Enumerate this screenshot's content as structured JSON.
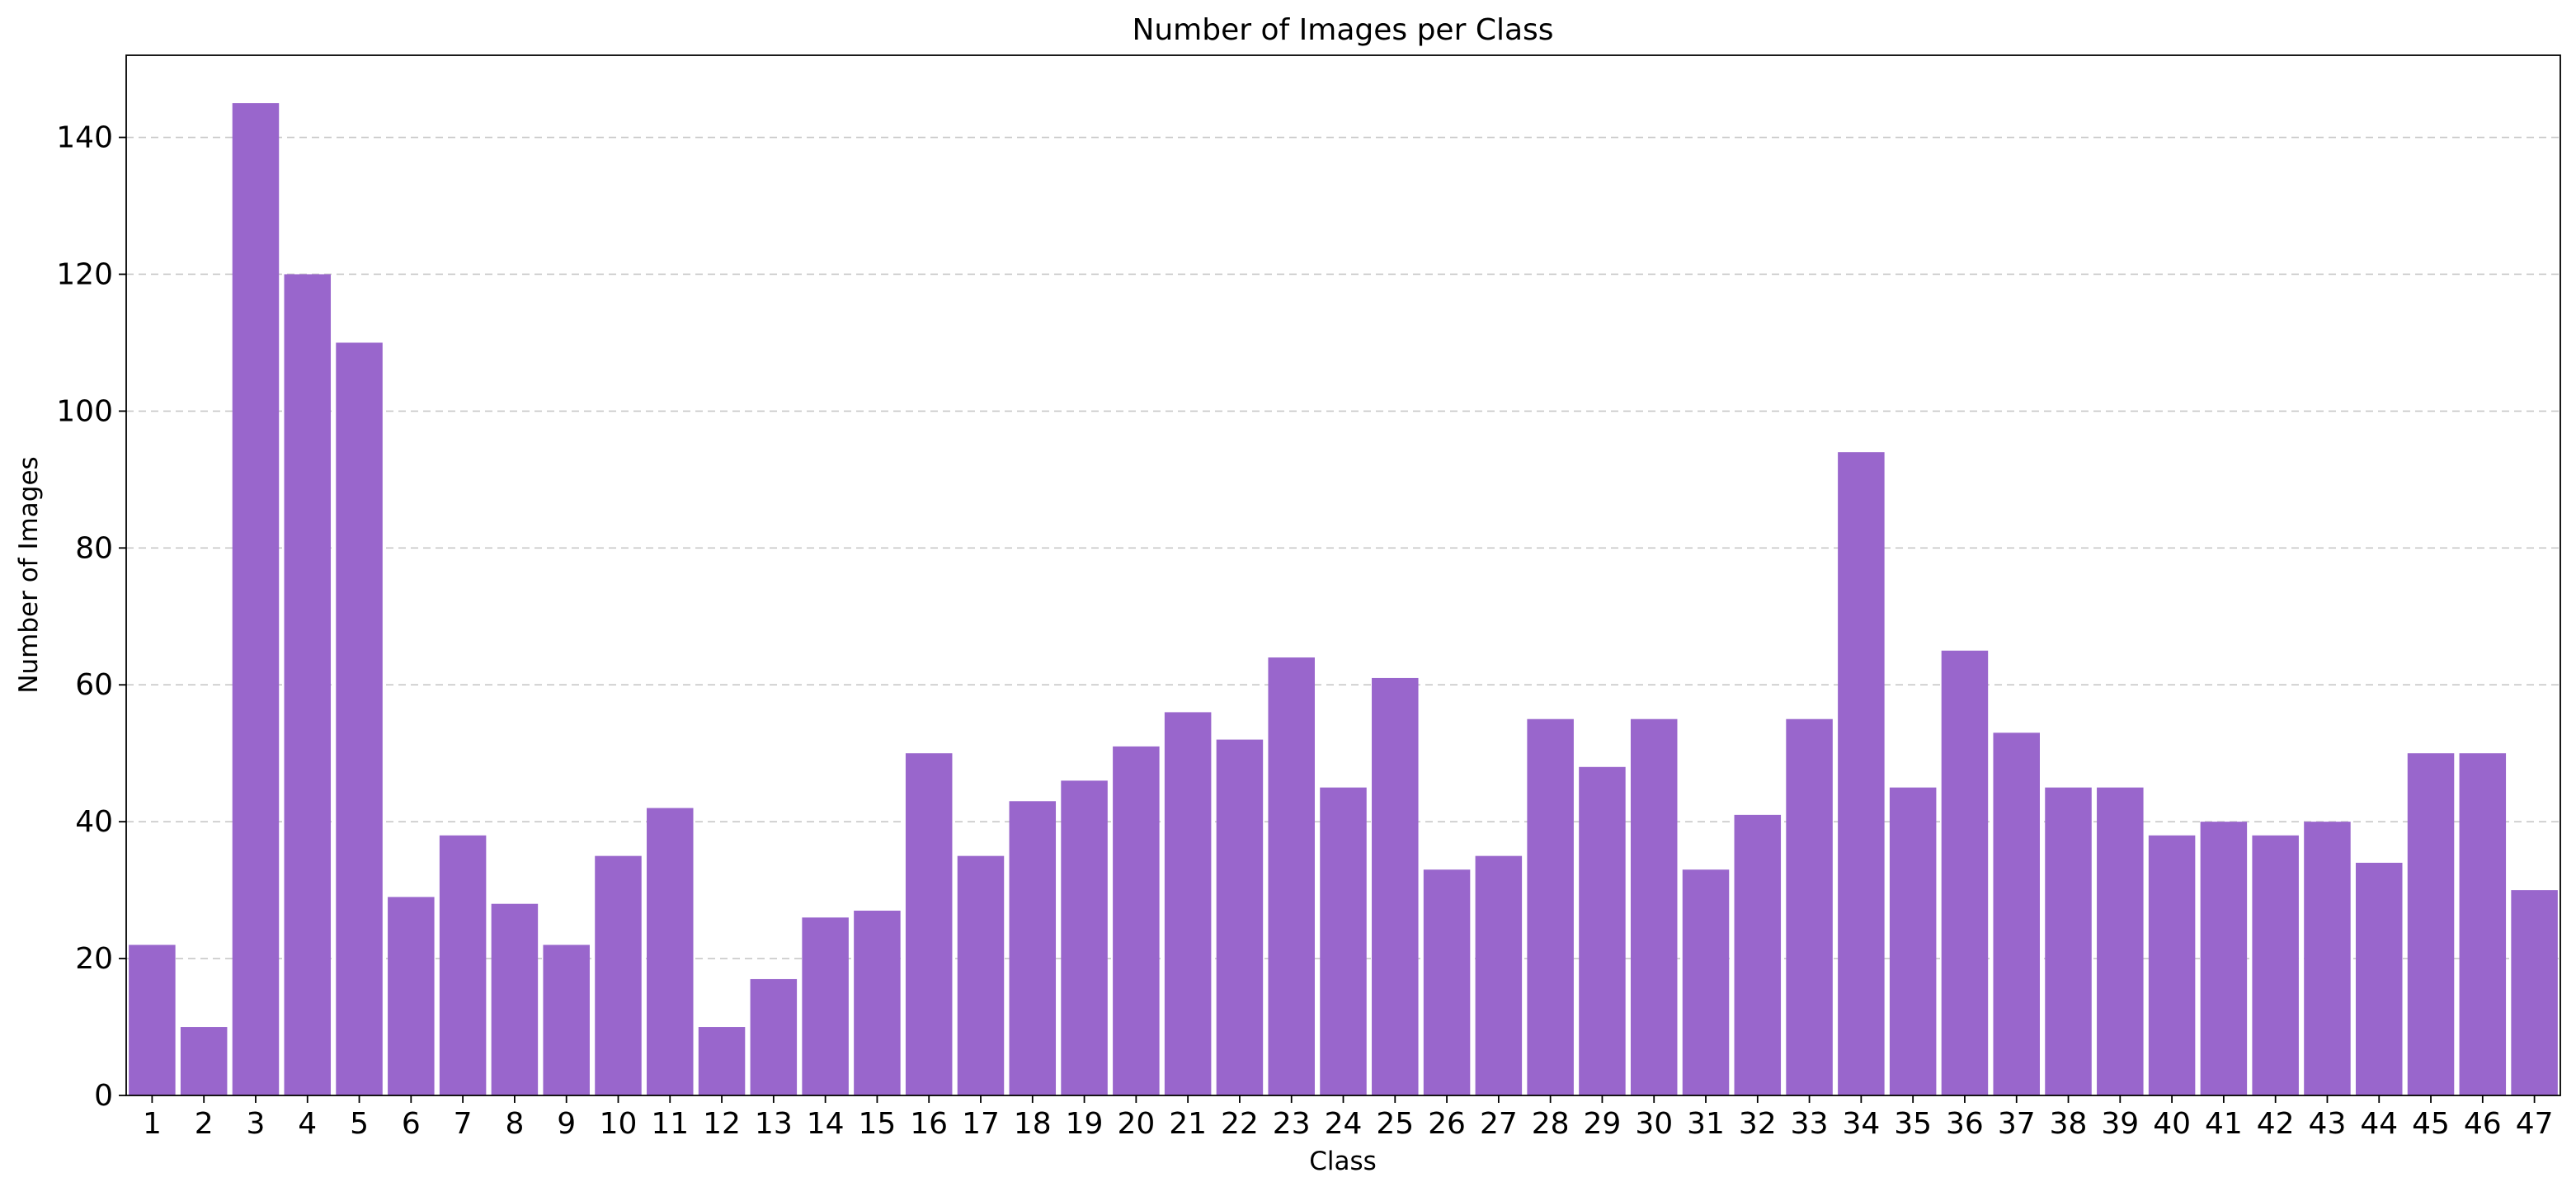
{
  "chart_data": {
    "type": "bar",
    "title": "Number of Images per Class",
    "xlabel": "Class",
    "ylabel": "Number of Images",
    "categories": [
      "1",
      "2",
      "3",
      "4",
      "5",
      "6",
      "7",
      "8",
      "9",
      "10",
      "11",
      "12",
      "13",
      "14",
      "15",
      "16",
      "17",
      "18",
      "19",
      "20",
      "21",
      "22",
      "23",
      "24",
      "25",
      "26",
      "27",
      "28",
      "29",
      "30",
      "31",
      "32",
      "33",
      "34",
      "35",
      "36",
      "37",
      "38",
      "39",
      "40",
      "41",
      "42",
      "43",
      "44",
      "45",
      "46",
      "47"
    ],
    "values": [
      22,
      10,
      145,
      120,
      110,
      29,
      38,
      28,
      22,
      35,
      42,
      10,
      17,
      26,
      27,
      50,
      35,
      43,
      46,
      51,
      56,
      52,
      64,
      45,
      61,
      33,
      35,
      55,
      48,
      55,
      33,
      41,
      55,
      94,
      45,
      65,
      53,
      45,
      45,
      38,
      40,
      38,
      40,
      34,
      50,
      50,
      30
    ],
    "ylim": [
      0,
      152
    ],
    "yticks": [
      0,
      20,
      40,
      60,
      80,
      100,
      120,
      140
    ],
    "grid": "y-dashed",
    "bar_color": "#9966cc",
    "grid_color": "#c8c8c8"
  }
}
